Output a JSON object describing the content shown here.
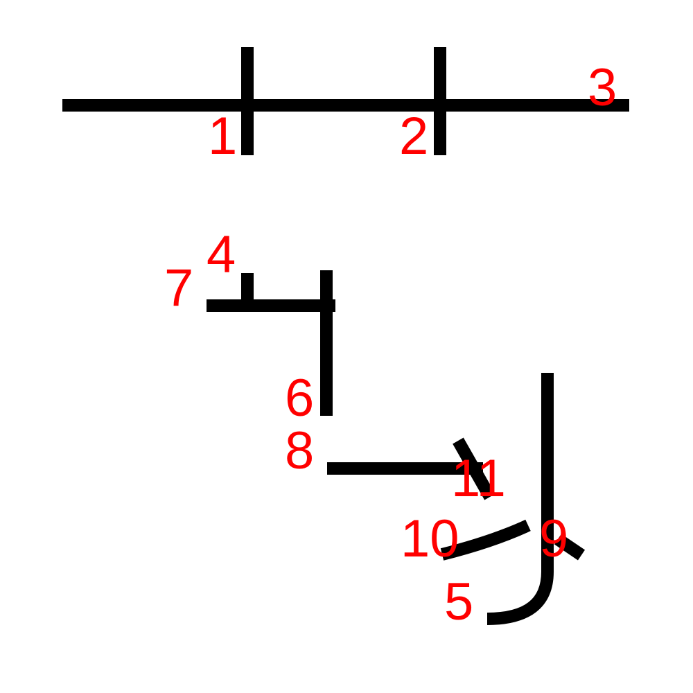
{
  "colors": {
    "stroke": "#000000",
    "label": "#ff0000",
    "background": "#ffffff"
  },
  "labels": [
    "1",
    "2",
    "3",
    "4",
    "5",
    "6",
    "7",
    "8",
    "9",
    "10",
    "11"
  ]
}
